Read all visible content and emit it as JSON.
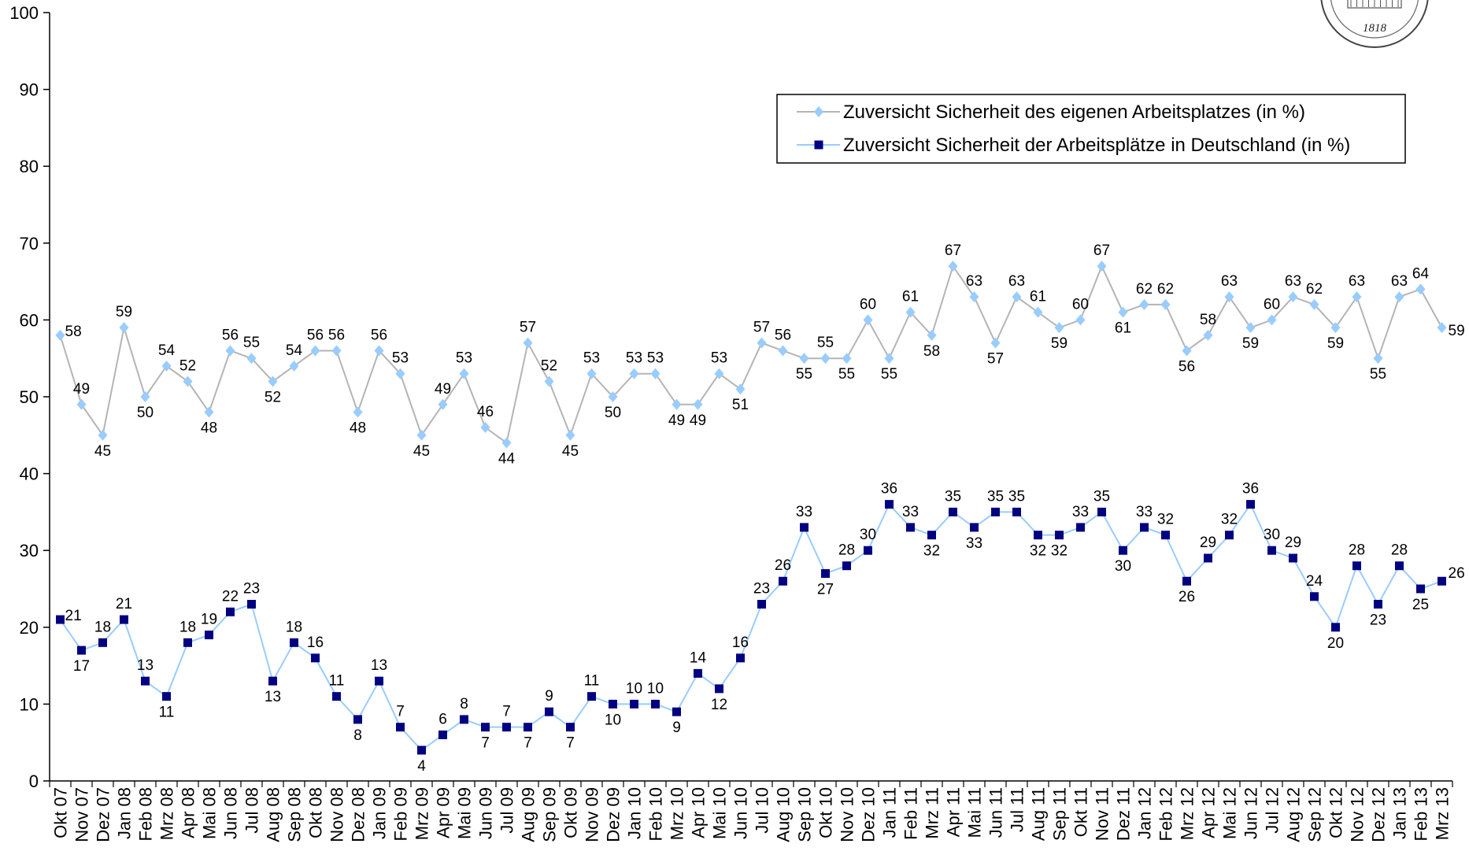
{
  "seal": {
    "year": "1818"
  },
  "chart_data": {
    "type": "line",
    "title": "",
    "xlabel": "",
    "ylabel": "",
    "ylim": [
      0,
      100
    ],
    "yticks": [
      0,
      10,
      20,
      30,
      40,
      50,
      60,
      70,
      80,
      90,
      100
    ],
    "grid": false,
    "legend_position": "top-right",
    "categories": [
      "Okt 07",
      "Nov 07",
      "Dez 07",
      "Jan 08",
      "Feb 08",
      "Mrz 08",
      "Apr 08",
      "Mai 08",
      "Jun 08",
      "Jul 08",
      "Aug 08",
      "Sep 08",
      "Okt 08",
      "Nov 08",
      "Dez 08",
      "Jan 09",
      "Feb 09",
      "Mrz 09",
      "Apr 09",
      "Mai 09",
      "Jun 09",
      "Jul 09",
      "Aug 09",
      "Sep 09",
      "Okt 09",
      "Nov 09",
      "Dez 09",
      "Jan 10",
      "Feb 10",
      "Mrz 10",
      "Apr 10",
      "Mai 10",
      "Jun 10",
      "Jul 10",
      "Aug 10",
      "Sep 10",
      "Okt 10",
      "Nov 10",
      "Dez 10",
      "Jan 11",
      "Feb 11",
      "Mrz 11",
      "Apr 11",
      "Mai 11",
      "Jun 11",
      "Jul 11",
      "Aug 11",
      "Sep 11",
      "Okt 11",
      "Nov 11",
      "Dez 11",
      "Jan 12",
      "Feb 12",
      "Mrz 12",
      "Apr 12",
      "Mai 12",
      "Jun 12",
      "Jul 12",
      "Aug 12",
      "Sep 12",
      "Okt 12",
      "Nov 12",
      "Dez 12",
      "Jan 13",
      "Feb 13",
      "Mrz 13"
    ],
    "series": [
      {
        "name": "Zuversicht Sicherheit des eigenen Arbeitsplatzes (in %)",
        "color": "#99ccff",
        "line_color": "#b4b4b4",
        "marker": "diamond",
        "values": [
          58,
          49,
          45,
          59,
          50,
          54,
          52,
          48,
          56,
          55,
          52,
          54,
          56,
          56,
          48,
          56,
          53,
          45,
          49,
          53,
          46,
          44,
          57,
          52,
          45,
          53,
          50,
          53,
          53,
          49,
          49,
          53,
          51,
          57,
          56,
          55,
          55,
          55,
          60,
          55,
          61,
          58,
          67,
          63,
          57,
          63,
          61,
          59,
          60,
          67,
          61,
          62,
          62,
          56,
          58,
          63,
          59,
          60,
          63,
          62,
          59,
          63,
          55,
          63,
          64,
          59
        ]
      },
      {
        "name": "Zuversicht Sicherheit der Arbeitsplätze in Deutschland (in %)",
        "color": "#000080",
        "line_color": "#99ccff",
        "marker": "square",
        "values": [
          21,
          17,
          18,
          21,
          13,
          11,
          18,
          19,
          22,
          23,
          13,
          18,
          16,
          11,
          8,
          13,
          7,
          4,
          6,
          8,
          7,
          7,
          7,
          9,
          7,
          11,
          10,
          10,
          10,
          9,
          14,
          12,
          16,
          23,
          26,
          33,
          27,
          28,
          30,
          36,
          33,
          32,
          35,
          33,
          35,
          35,
          32,
          32,
          33,
          35,
          30,
          33,
          32,
          26,
          29,
          32,
          36,
          30,
          29,
          24,
          20,
          28,
          23,
          28,
          25,
          26
        ]
      }
    ]
  }
}
